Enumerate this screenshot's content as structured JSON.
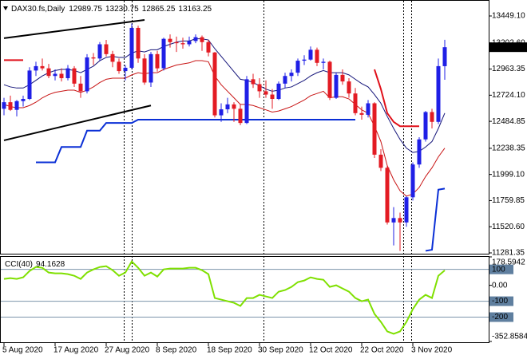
{
  "chart_data": {
    "type": "candlestick",
    "symbol": "DAX30.fs,Daily",
    "categories": [
      "5 Aug 2020",
      null,
      null,
      null,
      null,
      null,
      null,
      null,
      "17 Aug 2020",
      null,
      null,
      null,
      null,
      null,
      null,
      null,
      "27 Aug 2020",
      null,
      null,
      null,
      null,
      null,
      null,
      null,
      "8 Sep 2020",
      null,
      null,
      null,
      null,
      null,
      null,
      null,
      "18 Sep 2020",
      null,
      null,
      null,
      null,
      null,
      null,
      null,
      "30 Sep 2020",
      null,
      null,
      null,
      null,
      null,
      null,
      null,
      "12 Oct 2020",
      null,
      null,
      null,
      null,
      null,
      null,
      null,
      "22 Oct 2020",
      null,
      null,
      null,
      null,
      null,
      null,
      null,
      "3 Nov 2020",
      null,
      null,
      null,
      null,
      null
    ],
    "open": [
      12600,
      12660,
      12590,
      12670,
      12690,
      12950,
      12990,
      12970,
      12900,
      12920,
      12880,
      12970,
      12830,
      12760,
      13070,
      13060,
      13190,
      13100,
      13030,
      12945,
      12975,
      13340,
      13060,
      12840,
      13100,
      12970,
      13240,
      13210,
      13200,
      13190,
      13220,
      13255,
      13210,
      13115,
      12540,
      12595,
      12640,
      12600,
      12470,
      12870,
      12825,
      12760,
      12730,
      12690,
      12830,
      12900,
      12930,
      13040,
      13050,
      13140,
      13020,
      13030,
      12700,
      12910,
      12850,
      12740,
      12560,
      12545,
      12650,
      12180,
      12060,
      11560,
      11600,
      11560,
      11790,
      12090,
      12320,
      12570,
      12480,
      12989.75
    ],
    "high": [
      12700,
      12720,
      12680,
      12720,
      12980,
      13030,
      13060,
      13010,
      12960,
      12970,
      13000,
      12990,
      12900,
      13100,
      13110,
      13210,
      13230,
      13130,
      13060,
      13000,
      13380,
      13360,
      13100,
      13120,
      13130,
      13250,
      13280,
      13260,
      13250,
      13260,
      13280,
      13270,
      13230,
      13120,
      12650,
      12700,
      12660,
      12640,
      12900,
      12920,
      12880,
      12860,
      12780,
      12850,
      12930,
      12960,
      13060,
      13090,
      13170,
      13160,
      13060,
      13040,
      12930,
      12960,
      12880,
      12790,
      12620,
      12680,
      12660,
      12230,
      12080,
      11700,
      11650,
      11800,
      12110,
      12340,
      12580,
      12600,
      13060,
      13230.75
    ],
    "low": [
      12540,
      12580,
      12530,
      12620,
      12680,
      12900,
      12950,
      12880,
      12860,
      12850,
      12860,
      12800,
      12700,
      12740,
      13000,
      13040,
      13080,
      12980,
      12920,
      12860,
      12960,
      13020,
      12820,
      12800,
      12940,
      12950,
      13160,
      13120,
      13150,
      13170,
      13200,
      13130,
      13080,
      12520,
      12480,
      12560,
      12480,
      12450,
      12460,
      12790,
      12700,
      12700,
      12600,
      12680,
      12790,
      12850,
      12900,
      13000,
      13040,
      12990,
      12960,
      12680,
      12690,
      12820,
      12700,
      12540,
      12500,
      12520,
      12150,
      12030,
      11540,
      11350,
      11300,
      11520,
      11760,
      12060,
      12300,
      12420,
      12460,
      12865.25
    ],
    "close": [
      12660,
      12590,
      12670,
      12690,
      12950,
      12990,
      12970,
      12900,
      12920,
      12880,
      12970,
      12830,
      12760,
      13070,
      13060,
      13190,
      13100,
      13030,
      12945,
      12975,
      13340,
      13060,
      12840,
      13100,
      12970,
      13240,
      13210,
      13200,
      13190,
      13220,
      13255,
      13210,
      13115,
      12540,
      12595,
      12640,
      12600,
      12470,
      12870,
      12825,
      12760,
      12730,
      12690,
      12830,
      12900,
      12930,
      13040,
      13050,
      13140,
      13020,
      13030,
      12700,
      12910,
      12850,
      12740,
      12560,
      12545,
      12650,
      12180,
      12060,
      11560,
      11600,
      11560,
      11790,
      12090,
      12320,
      12570,
      12480,
      12990,
      13163.25
    ],
    "up_color": "#1f1fe6",
    "down_color": "#e31b23",
    "lines": [
      {
        "color": "#15157a",
        "width": 1,
        "values": [
          12820,
          12800,
          12790,
          12790,
          12820,
          12860,
          12900,
          12930,
          12950,
          12960,
          12960,
          12950,
          12930,
          12960,
          12990,
          13040,
          13070,
          13080,
          13070,
          13070,
          13110,
          13130,
          13120,
          13140,
          13140,
          13170,
          13190,
          13210,
          13220,
          13220,
          13240,
          13240,
          13230,
          13150,
          13080,
          13010,
          12940,
          12870,
          12860,
          12840,
          12810,
          12780,
          12760,
          12770,
          12790,
          12800,
          12830,
          12860,
          12900,
          12930,
          12950,
          12930,
          12930,
          12930,
          12910,
          12870,
          12830,
          12800,
          12730,
          12650,
          12530,
          12420,
          12320,
          12240,
          12200,
          12210,
          12250,
          12300,
          12420,
          12560
        ]
      },
      {
        "color": "#c81414",
        "width": 1,
        "values": [
          12640,
          12620,
          12610,
          12610,
          12630,
          12660,
          12700,
          12730,
          12750,
          12760,
          12770,
          12770,
          12750,
          12770,
          12800,
          12840,
          12870,
          12880,
          12880,
          12880,
          12910,
          12930,
          12920,
          12930,
          12930,
          12960,
          12980,
          13000,
          13010,
          13020,
          13040,
          13040,
          13030,
          12900,
          12820,
          12760,
          12700,
          12640,
          12640,
          12630,
          12610,
          12590,
          12570,
          12580,
          12600,
          12620,
          12650,
          12680,
          12720,
          12740,
          12760,
          12700,
          12710,
          12710,
          12690,
          12640,
          12590,
          12560,
          12440,
          12300,
          12080,
          11950,
          11850,
          11800,
          11820,
          11880,
          11980,
          12060,
          12160,
          12240
        ]
      },
      {
        "color": "#0a2fd6",
        "width": 2,
        "values": [
          null,
          null,
          null,
          null,
          null,
          12110,
          12110,
          12110,
          12110,
          12250,
          12250,
          12250,
          12250,
          12400,
          12400,
          12400,
          12470,
          12470,
          12470,
          12470,
          12470,
          12500,
          12500,
          12500,
          12500,
          12500,
          12500,
          12500,
          12500,
          12500,
          12500,
          12500,
          12500,
          12500,
          12500,
          12500,
          12500,
          12500,
          12500,
          12500,
          12500,
          12500,
          12500,
          12500,
          12500,
          12500,
          12500,
          12500,
          12500,
          12500,
          12500,
          12500,
          12500,
          12500,
          12500,
          12500,
          null,
          null,
          null,
          null,
          null,
          null,
          null,
          null,
          null,
          null,
          11300,
          11310,
          11860,
          11870
        ]
      },
      {
        "color": "#e0101a",
        "width": 2,
        "values": [
          13045,
          13045,
          13045,
          13045,
          null,
          null,
          null,
          null,
          null,
          null,
          null,
          null,
          null,
          null,
          null,
          null,
          null,
          null,
          null,
          null,
          null,
          null,
          null,
          null,
          null,
          null,
          null,
          null,
          null,
          null,
          null,
          null,
          null,
          null,
          null,
          null,
          null,
          null,
          null,
          null,
          null,
          null,
          null,
          null,
          null,
          null,
          null,
          null,
          null,
          null,
          null,
          null,
          null,
          null,
          null,
          null,
          null,
          null,
          12960,
          12780,
          12560,
          12480,
          12440,
          12440,
          12440,
          12440,
          null,
          null,
          null,
          null
        ]
      }
    ],
    "trendlines": [
      {
        "color": "#000000",
        "x": [
          0,
          22
        ],
        "values": [
          13246,
          13413
        ]
      },
      {
        "color": "#000000",
        "x": [
          0,
          23
        ],
        "values": [
          12311,
          12630
        ]
      }
    ],
    "ylim": [
      11274,
      13566
    ],
    "yticks": [
      {
        "value": 13449.1,
        "label": "13449.10"
      },
      {
        "value": 13202.6,
        "label": "13202.60"
      },
      {
        "value": 12963.35,
        "label": "12963.35"
      },
      {
        "value": 12724.1,
        "label": "12724.10"
      },
      {
        "value": 12484.85,
        "label": "12484.85"
      },
      {
        "value": 12238.35,
        "label": "12238.35"
      },
      {
        "value": 11999.1,
        "label": "11999.10"
      },
      {
        "value": 11759.85,
        "label": "11759.85"
      },
      {
        "value": 11520.6,
        "label": "11520.60"
      },
      {
        "value": 11281.35,
        "label": "11281.35"
      }
    ],
    "cci": {
      "label": "CCI(40)",
      "color": "#7fe000",
      "values": [
        40,
        45,
        40,
        50,
        90,
        115,
        110,
        80,
        75,
        75,
        70,
        60,
        40,
        80,
        100,
        115,
        120,
        95,
        60,
        80,
        150,
        110,
        60,
        80,
        55,
        100,
        105,
        105,
        105,
        110,
        110,
        95,
        70,
        -80,
        -90,
        -100,
        -110,
        -130,
        -80,
        -80,
        -60,
        -70,
        -80,
        -40,
        -30,
        -10,
        20,
        30,
        50,
        40,
        35,
        -10,
        0,
        -20,
        -40,
        -80,
        -100,
        -90,
        -180,
        -230,
        -290,
        -305,
        -290,
        -230,
        -150,
        -90,
        -60,
        -80,
        60,
        94.1628
      ],
      "ylim": [
        -352.8584,
        178.5942
      ],
      "yticks": [
        178.5942,
        100,
        {
          "value": 0,
          "label": "0.00"
        },
        -100,
        -200,
        -352.8584
      ],
      "levels": [
        100,
        -100,
        -200
      ]
    }
  }
}
